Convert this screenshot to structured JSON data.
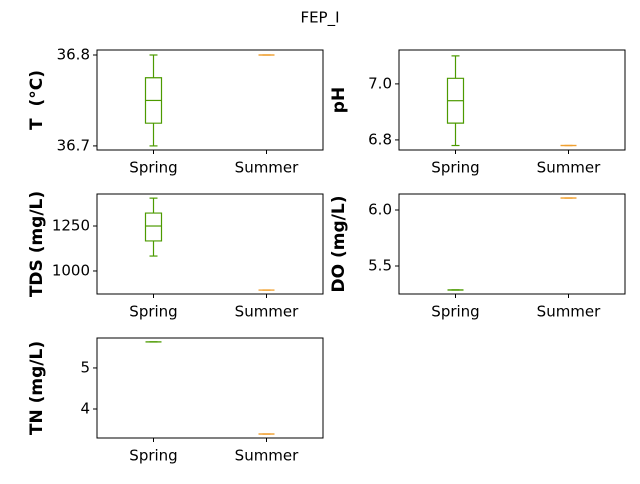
{
  "title": "FEP_I",
  "chart_data": [
    {
      "type": "box",
      "ylabel": "T  (°C)",
      "categories": [
        "Spring",
        "Summer"
      ],
      "colors": [
        "#4c9a00",
        "#f0a030"
      ],
      "boxes": [
        {
          "min": 36.7,
          "q1": 36.725,
          "median": 36.75,
          "q3": 36.775,
          "max": 36.8
        },
        {
          "min": 36.8,
          "q1": 36.8,
          "median": 36.8,
          "q3": 36.8,
          "max": 36.8
        }
      ],
      "ylim": [
        36.6955,
        36.8055
      ],
      "yticks": [
        36.7,
        36.8
      ]
    },
    {
      "type": "box",
      "ylabel": "pH",
      "categories": [
        "Spring",
        "Summer"
      ],
      "colors": [
        "#4c9a00",
        "#f0a030"
      ],
      "boxes": [
        {
          "min": 6.78,
          "q1": 6.86,
          "median": 6.94,
          "q3": 7.02,
          "max": 7.1
        },
        {
          "min": 6.78,
          "q1": 6.78,
          "median": 6.78,
          "q3": 6.78,
          "max": 6.78
        }
      ],
      "ylim": [
        6.764,
        7.121
      ],
      "yticks": [
        {
          "value": 6.8,
          "label": "6.8"
        },
        {
          "value": 7,
          "label": "7.0"
        }
      ]
    },
    {
      "type": "box",
      "ylabel": "TDS (mg/L)",
      "categories": [
        "Spring",
        "Summer"
      ],
      "colors": [
        "#4c9a00",
        "#f0a030"
      ],
      "boxes": [
        {
          "min": 1083,
          "q1": 1167,
          "median": 1250,
          "q3": 1322,
          "max": 1405
        },
        {
          "min": 894,
          "q1": 894,
          "median": 894,
          "q3": 894,
          "max": 894
        }
      ],
      "ylim": [
        872,
        1428
      ],
      "yticks": [
        1000,
        1250
      ]
    },
    {
      "type": "box",
      "ylabel": "DO (mg/L)",
      "categories": [
        "Spring",
        "Summer"
      ],
      "colors": [
        "#4c9a00",
        "#f0a030"
      ],
      "boxes": [
        {
          "min": 5.286,
          "q1": 5.286,
          "median": 5.286,
          "q3": 5.286,
          "max": 5.286
        },
        {
          "min": 6.107,
          "q1": 6.107,
          "median": 6.107,
          "q3": 6.107,
          "max": 6.107
        }
      ],
      "ylim": [
        5.25,
        6.143
      ],
      "yticks": [
        5.5,
        {
          "value": 6,
          "label": "6.0"
        }
      ]
    },
    {
      "type": "box",
      "ylabel": "TN (mg/L)",
      "categories": [
        "Spring",
        "Summer"
      ],
      "colors": [
        "#4c9a00",
        "#f0a030"
      ],
      "boxes": [
        {
          "min": 5.634,
          "q1": 5.634,
          "median": 5.634,
          "q3": 5.634,
          "max": 5.634
        },
        {
          "min": 3.39,
          "q1": 3.39,
          "median": 3.39,
          "q3": 3.39,
          "max": 3.39
        }
      ],
      "ylim": [
        3.293,
        5.73
      ],
      "yticks": [
        4,
        5
      ]
    }
  ]
}
